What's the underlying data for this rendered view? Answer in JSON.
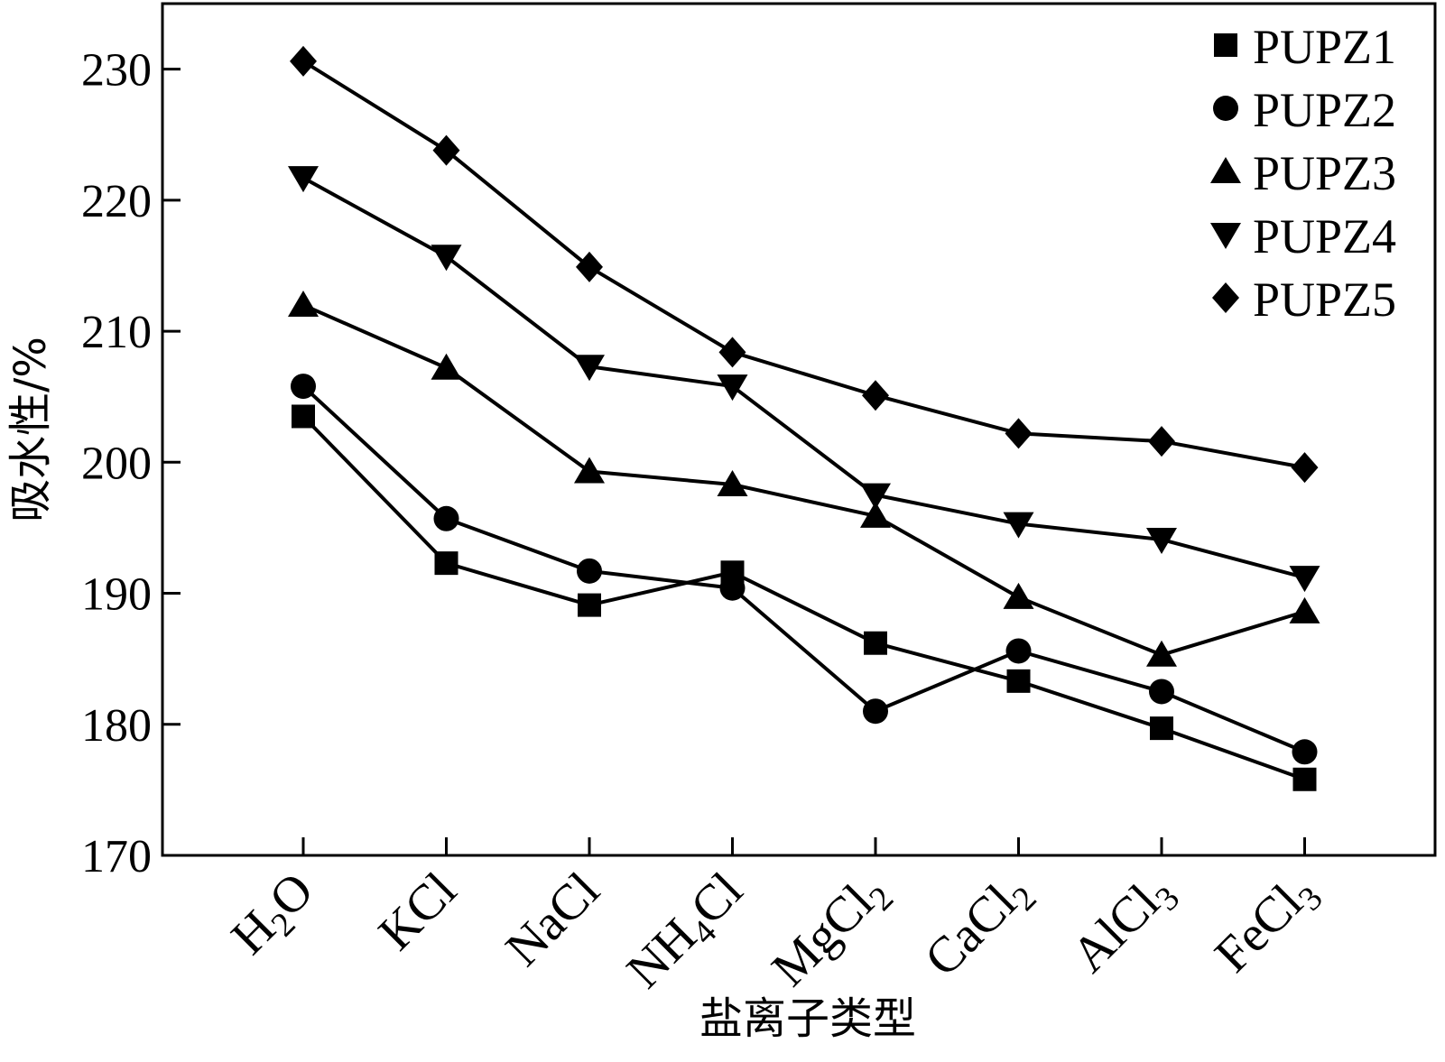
{
  "chart_data": {
    "type": "line",
    "xlabel": "盐离子类型",
    "ylabel": "吸水性/%",
    "ylim": [
      170,
      235
    ],
    "yticks": [
      170,
      180,
      190,
      200,
      210,
      220,
      230
    ],
    "categories": [
      {
        "base": "H",
        "sub": "2",
        "rest": "O"
      },
      {
        "base": "KCl",
        "sub": "",
        "rest": ""
      },
      {
        "base": "NaCl",
        "sub": "",
        "rest": ""
      },
      {
        "base": "NH",
        "sub": "4",
        "rest": "Cl"
      },
      {
        "base": "MgCl",
        "sub": "2",
        "rest": ""
      },
      {
        "base": "CaCl",
        "sub": "2",
        "rest": ""
      },
      {
        "base": "AlCl",
        "sub": "3",
        "rest": ""
      },
      {
        "base": "FeCl",
        "sub": "3",
        "rest": ""
      }
    ],
    "series": [
      {
        "name": "PUPZ1",
        "marker": "square",
        "values": [
          203.5,
          192.3,
          189.1,
          191.6,
          186.2,
          183.3,
          179.7,
          175.8
        ]
      },
      {
        "name": "PUPZ2",
        "marker": "circle",
        "values": [
          205.8,
          195.7,
          191.7,
          190.4,
          181.0,
          185.6,
          182.5,
          177.9
        ]
      },
      {
        "name": "PUPZ3",
        "marker": "triangle-up",
        "values": [
          212.0,
          207.2,
          199.3,
          198.3,
          195.9,
          189.7,
          185.3,
          188.6
        ]
      },
      {
        "name": "PUPZ4",
        "marker": "triangle-down",
        "values": [
          221.7,
          215.7,
          207.3,
          205.8,
          197.5,
          195.3,
          194.1,
          191.2
        ]
      },
      {
        "name": "PUPZ5",
        "marker": "diamond",
        "values": [
          230.6,
          223.8,
          214.9,
          208.4,
          205.1,
          202.2,
          201.6,
          199.6
        ]
      }
    ],
    "line_color": "#000000",
    "grid": false,
    "legend": "top-right"
  }
}
